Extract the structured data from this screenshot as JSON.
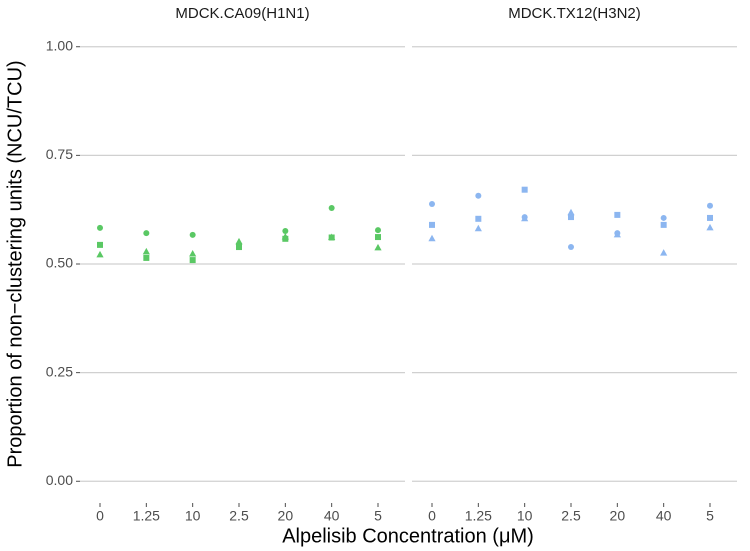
{
  "chart_data": [
    {
      "type": "scatter",
      "title": "MDCK.CA09(H1N1)",
      "ylabel": "Proportion of non−clustering units (NCU/TCU)",
      "xlabel": "Alpelisib Concentration (μM)",
      "categories": [
        "0",
        "1.25",
        "10",
        "2.5",
        "20",
        "40",
        "5"
      ],
      "ylim": [
        -0.05,
        1.05
      ],
      "yticks": [
        {
          "value": 0,
          "label": "0.00"
        },
        {
          "value": 0.25,
          "label": "0.25"
        },
        {
          "value": 0.5,
          "label": "0.50"
        },
        {
          "value": 0.75,
          "label": "0.75"
        },
        {
          "value": 1,
          "label": "1.00"
        }
      ],
      "grid": true,
      "series": [
        {
          "shape": "circle",
          "color": "#5ac864",
          "values": [
            0.583,
            0.571,
            0.567,
            0.545,
            0.576,
            0.629,
            0.578
          ]
        },
        {
          "shape": "square",
          "color": "#5ac864",
          "values": [
            0.544,
            0.514,
            0.509,
            0.539,
            0.558,
            0.561,
            0.562
          ]
        },
        {
          "shape": "triangle",
          "color": "#5ac864",
          "values": [
            0.521,
            0.528,
            0.523,
            0.551,
            0.562,
            0.561,
            0.537
          ]
        }
      ]
    },
    {
      "type": "scatter",
      "title": "MDCK.TX12(H3N2)",
      "categories": [
        "0",
        "1.25",
        "10",
        "2.5",
        "20",
        "40",
        "5"
      ],
      "ylim": [
        -0.05,
        1.05
      ],
      "yticks": [
        0,
        0.25,
        0.5,
        0.75,
        1
      ],
      "grid": true,
      "series": [
        {
          "shape": "circle",
          "color": "#8cb6f0",
          "values": [
            0.638,
            0.657,
            0.608,
            0.539,
            0.571,
            0.606,
            0.634
          ]
        },
        {
          "shape": "square",
          "color": "#8cb6f0",
          "values": [
            0.59,
            0.604,
            0.671,
            0.608,
            0.613,
            0.59,
            0.606
          ]
        },
        {
          "shape": "triangle",
          "color": "#8cb6f0",
          "values": [
            0.558,
            0.581,
            0.604,
            0.618,
            0.567,
            0.525,
            0.583
          ]
        }
      ]
    }
  ]
}
